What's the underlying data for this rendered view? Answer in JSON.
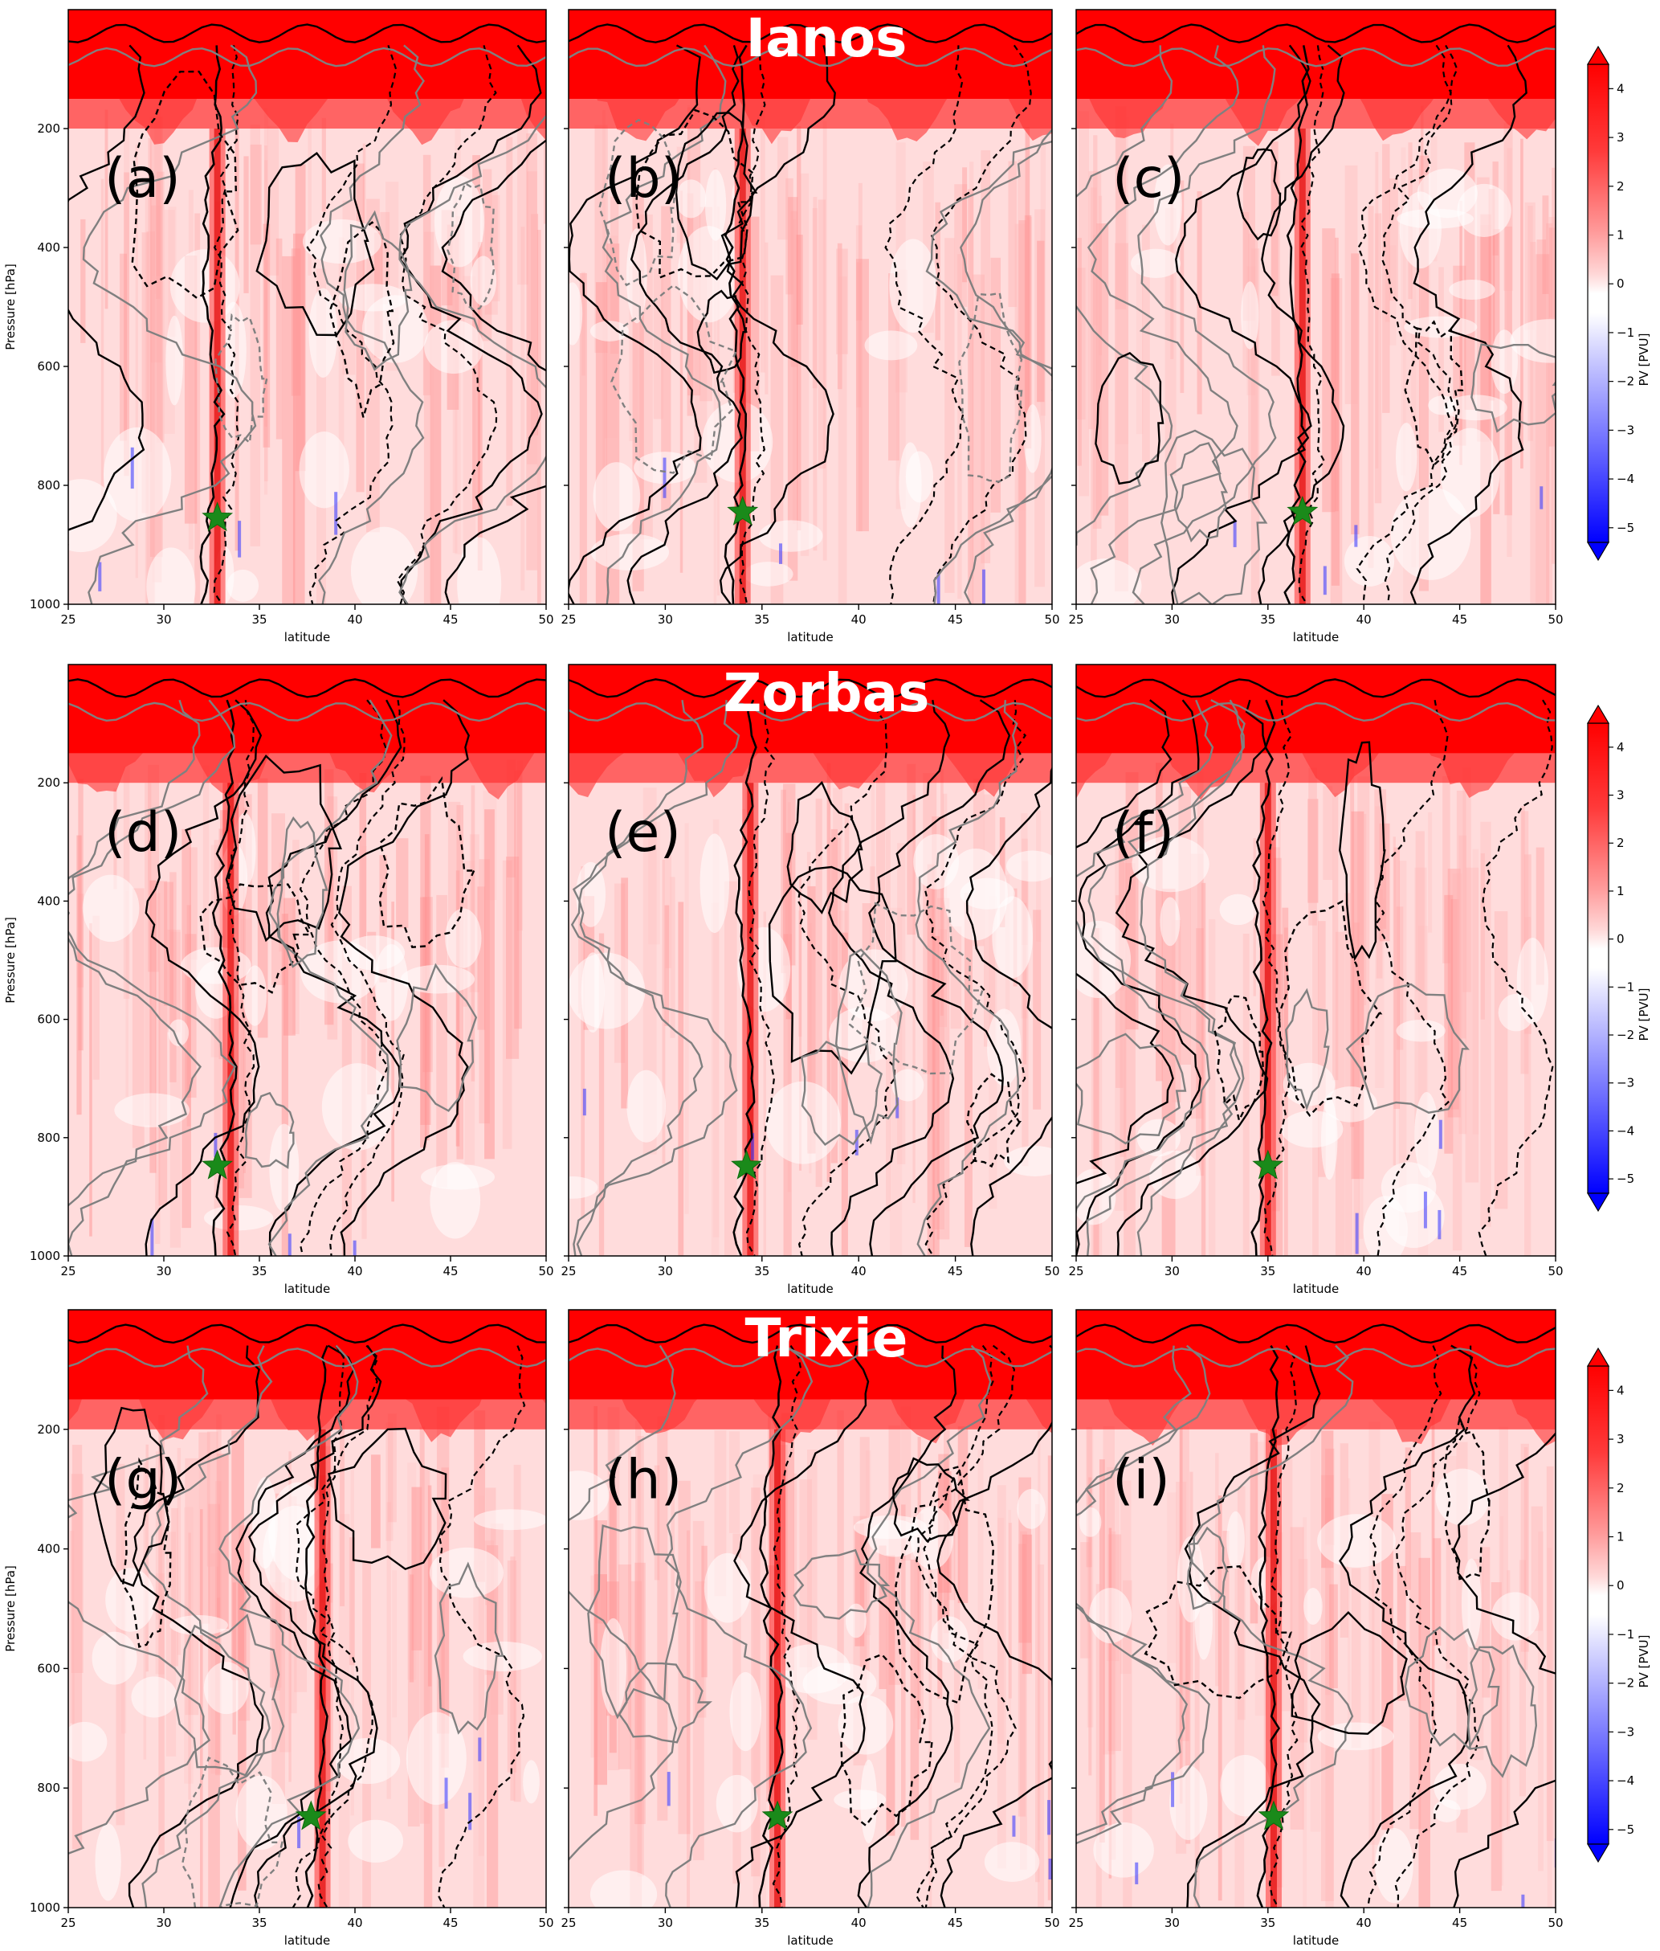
{
  "figure": {
    "rows": [
      {
        "storm": "Ianos"
      },
      {
        "storm": "Zorbas"
      },
      {
        "storm": "Trixie"
      }
    ]
  },
  "colorbar": {
    "label": "PV [PVU]",
    "ticks": [
      "4",
      "3",
      "2",
      "1",
      "0",
      "−1",
      "−2",
      "−3",
      "−4",
      "−5"
    ],
    "colors": {
      "max": "#ff0000",
      "mid": "#ffffff",
      "min": "#0000ff"
    }
  },
  "colors": {
    "contour_black": "#000000",
    "contour_gray": "#808080",
    "star": "#1a8a1a"
  },
  "chart_data": [
    {
      "type": "heatmap",
      "panel": "(a)",
      "storm": "Ianos",
      "xlabel": "latitude",
      "ylabel": "Pressure [hPa]",
      "xlim": [
        25,
        50
      ],
      "ylim": [
        1000,
        0
      ],
      "xticks": [
        "25",
        "30",
        "35",
        "40",
        "45",
        "50"
      ],
      "yticks": [
        "200",
        "400",
        "600",
        "800",
        "1000"
      ],
      "star": {
        "latitude": 32.8,
        "pressure": 855
      },
      "column_latitude": 32.8
    },
    {
      "type": "heatmap",
      "panel": "(b)",
      "storm": "Ianos",
      "xlabel": "latitude",
      "ylabel": "",
      "xlim": [
        25,
        50
      ],
      "ylim": [
        1000,
        0
      ],
      "xticks": [
        "25",
        "30",
        "35",
        "40",
        "45",
        "50"
      ],
      "yticks": [],
      "star": {
        "latitude": 34.0,
        "pressure": 845
      },
      "column_latitude": 34.0
    },
    {
      "type": "heatmap",
      "panel": "(c)",
      "storm": "Ianos",
      "xlabel": "latitude",
      "ylabel": "",
      "xlim": [
        25,
        50
      ],
      "ylim": [
        1000,
        0
      ],
      "xticks": [
        "25",
        "30",
        "35",
        "40",
        "45",
        "50"
      ],
      "yticks": [],
      "star": {
        "latitude": 36.8,
        "pressure": 845
      },
      "column_latitude": 36.8
    },
    {
      "type": "heatmap",
      "panel": "(d)",
      "storm": "Zorbas",
      "xlabel": "latitude",
      "ylabel": "Pressure [hPa]",
      "xlim": [
        25,
        50
      ],
      "ylim": [
        1000,
        0
      ],
      "xticks": [
        "25",
        "30",
        "35",
        "40",
        "45",
        "50"
      ],
      "yticks": [
        "200",
        "400",
        "600",
        "800",
        "1000"
      ],
      "star": {
        "latitude": 32.8,
        "pressure": 848
      },
      "column_latitude": 33.5
    },
    {
      "type": "heatmap",
      "panel": "(e)",
      "storm": "Zorbas",
      "xlabel": "latitude",
      "ylabel": "",
      "xlim": [
        25,
        50
      ],
      "ylim": [
        1000,
        0
      ],
      "xticks": [
        "25",
        "30",
        "35",
        "40",
        "45",
        "50"
      ],
      "yticks": [],
      "star": {
        "latitude": 34.2,
        "pressure": 848
      },
      "column_latitude": 34.4
    },
    {
      "type": "heatmap",
      "panel": "(f)",
      "storm": "Zorbas",
      "xlabel": "latitude",
      "ylabel": "",
      "xlim": [
        25,
        50
      ],
      "ylim": [
        1000,
        0
      ],
      "xticks": [
        "25",
        "30",
        "35",
        "40",
        "45",
        "50"
      ],
      "yticks": [],
      "star": {
        "latitude": 35.0,
        "pressure": 848
      },
      "column_latitude": 35.0
    },
    {
      "type": "heatmap",
      "panel": "(g)",
      "storm": "Trixie",
      "xlabel": "latitude",
      "ylabel": "Pressure [hPa]",
      "xlim": [
        25,
        50
      ],
      "ylim": [
        1000,
        0
      ],
      "xticks": [
        "25",
        "30",
        "35",
        "40",
        "45",
        "50"
      ],
      "yticks": [
        "200",
        "400",
        "600",
        "800",
        "1000"
      ],
      "star": {
        "latitude": 37.7,
        "pressure": 848
      },
      "column_latitude": 38.3
    },
    {
      "type": "heatmap",
      "panel": "(h)",
      "storm": "Trixie",
      "xlabel": "latitude",
      "ylabel": "",
      "xlim": [
        25,
        50
      ],
      "ylim": [
        1000,
        0
      ],
      "xticks": [
        "25",
        "30",
        "35",
        "40",
        "45",
        "50"
      ],
      "yticks": [],
      "star": {
        "latitude": 35.8,
        "pressure": 848
      },
      "column_latitude": 35.8
    },
    {
      "type": "heatmap",
      "panel": "(i)",
      "storm": "Trixie",
      "xlabel": "latitude",
      "ylabel": "",
      "xlim": [
        25,
        50
      ],
      "ylim": [
        1000,
        0
      ],
      "xticks": [
        "25",
        "30",
        "35",
        "40",
        "45",
        "50"
      ],
      "yticks": [],
      "star": {
        "latitude": 35.3,
        "pressure": 848
      },
      "column_latitude": 35.3
    }
  ]
}
